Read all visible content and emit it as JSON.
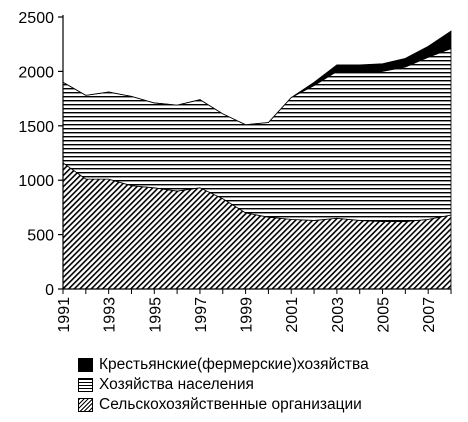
{
  "chart_data": {
    "type": "area",
    "stacked": true,
    "title": "",
    "xlabel": "",
    "ylabel": "",
    "x": [
      1991,
      1992,
      1993,
      1994,
      1995,
      1996,
      1997,
      1998,
      1999,
      2000,
      2001,
      2002,
      2003,
      2004,
      2005,
      2006,
      2007,
      2008
    ],
    "xticks": [
      "1991",
      "1993",
      "1995",
      "1997",
      "1999",
      "2001",
      "2003",
      "2005",
      "2007"
    ],
    "yticks": [
      "0",
      "500",
      "1000",
      "1500",
      "2000",
      "2500"
    ],
    "ylim": [
      0,
      2500
    ],
    "grid": false,
    "legend_position": "bottom",
    "series": [
      {
        "name": "Сельскохозяйственные организации",
        "pattern": "diagonal-hatch",
        "values": [
          1160,
          1010,
          1010,
          950,
          930,
          900,
          930,
          830,
          700,
          660,
          640,
          630,
          650,
          630,
          620,
          620,
          640,
          680
        ]
      },
      {
        "name": "Хозяйства населения",
        "pattern": "horizontal-lines",
        "values": [
          740,
          770,
          800,
          820,
          780,
          790,
          810,
          780,
          810,
          870,
          1120,
          1240,
          1350,
          1360,
          1380,
          1420,
          1490,
          1530
        ]
      },
      {
        "name": "Крестьянские(фермерские)хозяйства",
        "pattern": "solid-black",
        "values": [
          0,
          0,
          0,
          0,
          0,
          0,
          0,
          0,
          0,
          0,
          0,
          30,
          60,
          70,
          70,
          80,
          100,
          160
        ]
      }
    ]
  },
  "legend": [
    "Крестьянские(фермерские)хозяйства",
    "Хозяйства населения",
    "Сельскохозяйственные организации"
  ],
  "colors": {
    "ink": "#000000",
    "background": "#ffffff"
  }
}
